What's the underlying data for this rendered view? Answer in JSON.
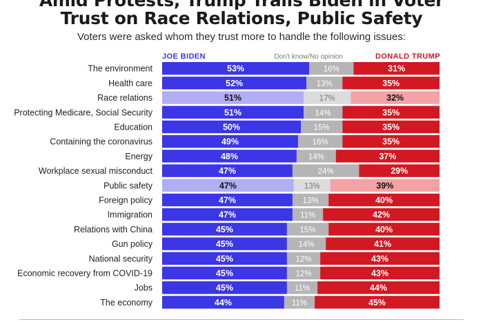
{
  "title_line1": "Amid Protests, Trump Trails Biden in Voter",
  "title_line2": "Trust on Race Relations, Public Safety",
  "subtitle": "Voters were asked whom they trust more to handle the following issues:",
  "colors": {
    "biden": "#3b36e6",
    "biden_light": "#b2aef3",
    "dk": "#b5b5b5",
    "dk_light": "#dcdcdc",
    "trump": "#d21822",
    "trump_light": "#f4a2a5"
  },
  "chart_data": {
    "type": "bar",
    "orientation": "horizontal",
    "stacked": true,
    "legend": [
      "JOE BIDEN",
      "Don't know/No opinion",
      "DONALD TRUMP"
    ],
    "highlighted": [
      "Race relations",
      "Public safety"
    ],
    "categories": [
      "The environment",
      "Health care",
      "Race relations",
      "Protecting Medicare, Social Security",
      "Education",
      "Containing the coronavirus",
      "Energy",
      "Workplace sexual misconduct",
      "Public safety",
      "Foreign policy",
      "Immigration",
      "Relations with China",
      "Gun policy",
      "National security",
      "Economic recovery from COVID-19",
      "Jobs",
      "The economy"
    ],
    "series": [
      {
        "name": "JOE BIDEN",
        "values": [
          53,
          52,
          51,
          51,
          50,
          49,
          48,
          47,
          47,
          47,
          47,
          45,
          45,
          45,
          45,
          45,
          44
        ]
      },
      {
        "name": "Don't know/No opinion",
        "values": [
          16,
          13,
          17,
          14,
          15,
          16,
          14,
          24,
          13,
          13,
          11,
          15,
          14,
          12,
          12,
          11,
          11
        ]
      },
      {
        "name": "DONALD TRUMP",
        "values": [
          31,
          35,
          32,
          35,
          35,
          35,
          37,
          29,
          39,
          40,
          42,
          40,
          41,
          43,
          43,
          44,
          45
        ]
      }
    ]
  }
}
